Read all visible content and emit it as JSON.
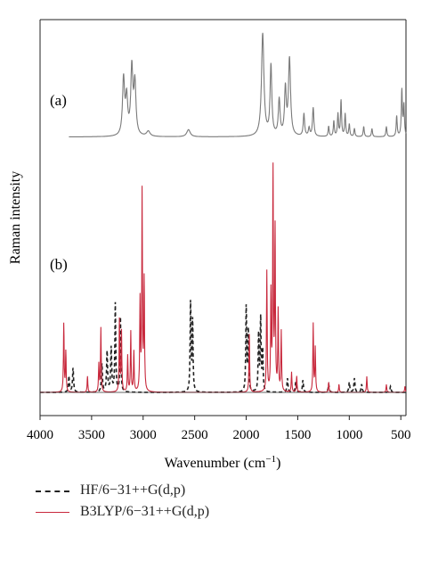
{
  "chart_data": {
    "type": "line",
    "ylabel": "Raman intensity",
    "xlabel": "Wavenumber (cm",
    "xlabel_sup": "−1",
    "xlabel_tail": ")",
    "xlim": [
      4000,
      450
    ],
    "x_reversed": true,
    "ylim": [
      0,
      1
    ],
    "x_ticks": [
      4000,
      3500,
      3000,
      2500,
      2000,
      1500,
      1000,
      500
    ],
    "x_tick_labels": [
      "4000",
      "3500",
      "3000",
      "2500",
      "2000",
      "1500",
      "1000",
      "500"
    ],
    "grid": false,
    "legend_position": "bottom-left",
    "panels": [
      {
        "label": "(a)",
        "series": [
          {
            "name": "",
            "style": "solid",
            "color": "#7a7a7a",
            "baseline": 0.03,
            "line_range": [
              3720,
              450
            ],
            "peaks": [
              {
                "x": 3190,
                "y": 0.55,
                "w": 12
              },
              {
                "x": 3160,
                "y": 0.35,
                "w": 12
              },
              {
                "x": 3110,
                "y": 0.65,
                "w": 12
              },
              {
                "x": 3080,
                "y": 0.5,
                "w": 12
              },
              {
                "x": 2950,
                "y": 0.05,
                "w": 20
              },
              {
                "x": 2560,
                "y": 0.07,
                "w": 20
              },
              {
                "x": 1840,
                "y": 1.0,
                "w": 14
              },
              {
                "x": 1760,
                "y": 0.68,
                "w": 10
              },
              {
                "x": 1680,
                "y": 0.35,
                "w": 10
              },
              {
                "x": 1620,
                "y": 0.45,
                "w": 10
              },
              {
                "x": 1580,
                "y": 0.75,
                "w": 12
              },
              {
                "x": 1440,
                "y": 0.22,
                "w": 8
              },
              {
                "x": 1390,
                "y": 0.08,
                "w": 8
              },
              {
                "x": 1350,
                "y": 0.28,
                "w": 8
              },
              {
                "x": 1200,
                "y": 0.1,
                "w": 6
              },
              {
                "x": 1150,
                "y": 0.15,
                "w": 6
              },
              {
                "x": 1110,
                "y": 0.22,
                "w": 6
              },
              {
                "x": 1080,
                "y": 0.35,
                "w": 6
              },
              {
                "x": 1040,
                "y": 0.22,
                "w": 6
              },
              {
                "x": 1000,
                "y": 0.12,
                "w": 6
              },
              {
                "x": 950,
                "y": 0.08,
                "w": 6
              },
              {
                "x": 860,
                "y": 0.1,
                "w": 6
              },
              {
                "x": 780,
                "y": 0.08,
                "w": 6
              },
              {
                "x": 640,
                "y": 0.1,
                "w": 6
              },
              {
                "x": 540,
                "y": 0.2,
                "w": 6
              },
              {
                "x": 490,
                "y": 0.45,
                "w": 6
              },
              {
                "x": 470,
                "y": 0.3,
                "w": 6
              }
            ]
          }
        ]
      },
      {
        "label": "(b)",
        "series": [
          {
            "name": "HF/6−31++G(d,p)",
            "style": "dashed",
            "color": "#222222",
            "baseline": 0.0,
            "peaks": [
              {
                "x": 3720,
                "y": 0.08,
                "w": 6
              },
              {
                "x": 3680,
                "y": 0.12,
                "w": 6
              },
              {
                "x": 3400,
                "y": 0.14,
                "w": 6
              },
              {
                "x": 3350,
                "y": 0.2,
                "w": 6
              },
              {
                "x": 3310,
                "y": 0.22,
                "w": 6
              },
              {
                "x": 3270,
                "y": 0.44,
                "w": 5
              },
              {
                "x": 3220,
                "y": 0.37,
                "w": 5
              },
              {
                "x": 2540,
                "y": 0.44,
                "w": 5
              },
              {
                "x": 2520,
                "y": 0.35,
                "w": 5
              },
              {
                "x": 2000,
                "y": 0.42,
                "w": 5
              },
              {
                "x": 1980,
                "y": 0.3,
                "w": 5
              },
              {
                "x": 1880,
                "y": 0.28,
                "w": 5
              },
              {
                "x": 1860,
                "y": 0.36,
                "w": 5
              },
              {
                "x": 1840,
                "y": 0.2,
                "w": 5
              },
              {
                "x": 1600,
                "y": 0.07,
                "w": 6
              },
              {
                "x": 1520,
                "y": 0.05,
                "w": 6
              },
              {
                "x": 1450,
                "y": 0.06,
                "w": 6
              },
              {
                "x": 1200,
                "y": 0.04,
                "w": 6
              },
              {
                "x": 1000,
                "y": 0.05,
                "w": 6
              },
              {
                "x": 950,
                "y": 0.07,
                "w": 6
              },
              {
                "x": 880,
                "y": 0.04,
                "w": 6
              },
              {
                "x": 600,
                "y": 0.03,
                "w": 6
              }
            ]
          },
          {
            "name": "B3LYP/6−31++G(d,p)",
            "style": "solid",
            "color": "#c8283c",
            "baseline": 0.0,
            "peaks": [
              {
                "x": 3770,
                "y": 0.34,
                "w": 4
              },
              {
                "x": 3750,
                "y": 0.2,
                "w": 4
              },
              {
                "x": 3540,
                "y": 0.08,
                "w": 4
              },
              {
                "x": 3430,
                "y": 0.14,
                "w": 4
              },
              {
                "x": 3410,
                "y": 0.32,
                "w": 4
              },
              {
                "x": 3230,
                "y": 0.36,
                "w": 4
              },
              {
                "x": 3210,
                "y": 0.3,
                "w": 4
              },
              {
                "x": 3150,
                "y": 0.18,
                "w": 4
              },
              {
                "x": 3120,
                "y": 0.3,
                "w": 4
              },
              {
                "x": 3090,
                "y": 0.2,
                "w": 4
              },
              {
                "x": 3030,
                "y": 0.45,
                "w": 4
              },
              {
                "x": 3010,
                "y": 0.99,
                "w": 4
              },
              {
                "x": 2990,
                "y": 0.55,
                "w": 4
              },
              {
                "x": 1970,
                "y": 0.29,
                "w": 4
              },
              {
                "x": 1800,
                "y": 0.6,
                "w": 4
              },
              {
                "x": 1760,
                "y": 0.48,
                "w": 4
              },
              {
                "x": 1740,
                "y": 1.09,
                "w": 4
              },
              {
                "x": 1720,
                "y": 0.8,
                "w": 4
              },
              {
                "x": 1690,
                "y": 0.4,
                "w": 4
              },
              {
                "x": 1660,
                "y": 0.3,
                "w": 4
              },
              {
                "x": 1560,
                "y": 0.1,
                "w": 4
              },
              {
                "x": 1510,
                "y": 0.08,
                "w": 4
              },
              {
                "x": 1350,
                "y": 0.34,
                "w": 4
              },
              {
                "x": 1330,
                "y": 0.22,
                "w": 4
              },
              {
                "x": 1200,
                "y": 0.05,
                "w": 4
              },
              {
                "x": 1100,
                "y": 0.04,
                "w": 4
              },
              {
                "x": 830,
                "y": 0.08,
                "w": 4
              },
              {
                "x": 640,
                "y": 0.04,
                "w": 4
              },
              {
                "x": 460,
                "y": 0.03,
                "w": 4
              }
            ]
          }
        ]
      }
    ]
  }
}
